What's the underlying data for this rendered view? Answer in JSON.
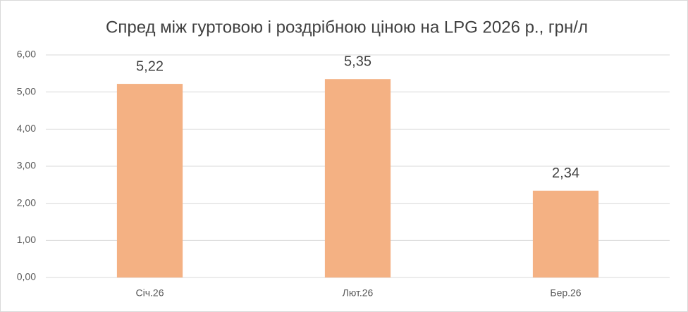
{
  "chart_data": {
    "type": "bar",
    "title": "Спред між гуртовою і роздрібною ціною на LPG 2026 р., грн/л",
    "categories": [
      "Січ.26",
      "Лют.26",
      "Бер.26"
    ],
    "values": [
      5.22,
      5.35,
      2.34
    ],
    "value_labels": [
      "5,22",
      "5,35",
      "2,34"
    ],
    "color": "#f4b183",
    "ylim": [
      0,
      6
    ],
    "yticks": [
      {
        "value": 0,
        "label": "0,00"
      },
      {
        "value": 1,
        "label": "1,00"
      },
      {
        "value": 2,
        "label": "2,00"
      },
      {
        "value": 3,
        "label": "3,00"
      },
      {
        "value": 4,
        "label": "4,00"
      },
      {
        "value": 5,
        "label": "5,00"
      },
      {
        "value": 6,
        "label": "6,00"
      }
    ],
    "grid": true
  }
}
